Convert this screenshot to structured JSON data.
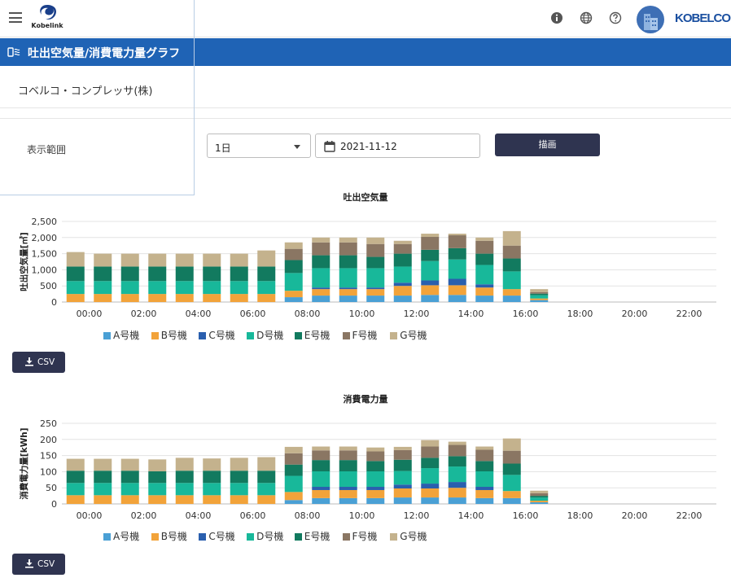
{
  "app": {
    "logo_text": "Kobelink",
    "brand": "KOBELCO"
  },
  "topbar": {
    "icons": [
      "menu-icon",
      "info-icon",
      "globe-icon",
      "help-icon",
      "avatar-building-icon"
    ]
  },
  "page": {
    "title": "吐出空気量/消費電力量グラフ",
    "title_icon": "compressor-icon",
    "company": "コベルコ・コンプレッサ(株)"
  },
  "form": {
    "range_label": "表示範囲",
    "range_value": "1日",
    "date_value": "2021-11-12",
    "draw_button": "描画"
  },
  "colors": {
    "A": "#4aa0d5",
    "B": "#f2a33a",
    "C": "#2a5fae",
    "D": "#18b89a",
    "E": "#127a5f",
    "F": "#8a7663",
    "G": "#c4b28d",
    "header": "#1f63b5",
    "button": "#2f3450"
  },
  "csv_label": "CSV",
  "chart_data": [
    {
      "type": "bar",
      "stacked": true,
      "title": "吐出空気量",
      "ylabel": "吐出空気量[㎥]",
      "ylim": [
        0,
        2500
      ],
      "yticks": [
        "0",
        "500",
        "1,000",
        "1,500",
        "2,000",
        "2,500"
      ],
      "xtick_labels": [
        "00:00",
        "02:00",
        "04:00",
        "06:00",
        "08:00",
        "10:00",
        "12:00",
        "14:00",
        "16:00",
        "18:00",
        "20:00",
        "22:00"
      ],
      "categories": [
        "00:00",
        "01:00",
        "02:00",
        "03:00",
        "04:00",
        "05:00",
        "06:00",
        "07:00",
        "08:00",
        "09:00",
        "10:00",
        "11:00",
        "12:00",
        "13:00",
        "14:00",
        "15:00",
        "16:00",
        "17:00"
      ],
      "series": [
        {
          "name": "A号機",
          "values": [
            0,
            0,
            0,
            0,
            0,
            0,
            0,
            0,
            150,
            200,
            200,
            200,
            200,
            220,
            220,
            200,
            200,
            60
          ]
        },
        {
          "name": "B号機",
          "values": [
            250,
            250,
            250,
            250,
            250,
            250,
            250,
            250,
            200,
            200,
            200,
            200,
            300,
            300,
            300,
            250,
            200,
            50
          ]
        },
        {
          "name": "C号機",
          "values": [
            0,
            0,
            0,
            0,
            0,
            0,
            0,
            0,
            0,
            50,
            50,
            50,
            100,
            150,
            200,
            100,
            0,
            0
          ]
        },
        {
          "name": "D号機",
          "values": [
            400,
            400,
            400,
            400,
            400,
            400,
            400,
            400,
            550,
            600,
            600,
            600,
            500,
            600,
            600,
            600,
            550,
            100
          ]
        },
        {
          "name": "E号機",
          "values": [
            450,
            450,
            450,
            450,
            450,
            450,
            450,
            450,
            400,
            400,
            400,
            350,
            400,
            350,
            350,
            350,
            400,
            50
          ]
        },
        {
          "name": "F号機",
          "values": [
            0,
            0,
            0,
            0,
            0,
            0,
            0,
            0,
            350,
            400,
            400,
            400,
            300,
            400,
            400,
            400,
            400,
            50
          ]
        },
        {
          "name": "G号機",
          "values": [
            450,
            400,
            400,
            400,
            400,
            400,
            400,
            500,
            200,
            150,
            150,
            200,
            100,
            100,
            50,
            100,
            450,
            90
          ]
        }
      ]
    },
    {
      "type": "bar",
      "stacked": true,
      "title": "消費電力量",
      "ylabel": "消費電力量[kWh]",
      "ylim": [
        0,
        250
      ],
      "yticks": [
        "0",
        "50",
        "100",
        "150",
        "200",
        "250"
      ],
      "xtick_labels": [
        "00:00",
        "02:00",
        "04:00",
        "06:00",
        "08:00",
        "10:00",
        "12:00",
        "14:00",
        "16:00",
        "18:00",
        "20:00",
        "22:00"
      ],
      "categories": [
        "00:00",
        "01:00",
        "02:00",
        "03:00",
        "04:00",
        "05:00",
        "06:00",
        "07:00",
        "08:00",
        "09:00",
        "10:00",
        "11:00",
        "12:00",
        "13:00",
        "14:00",
        "15:00",
        "16:00",
        "17:00"
      ],
      "series": [
        {
          "name": "A号機",
          "values": [
            0,
            0,
            0,
            0,
            0,
            0,
            0,
            0,
            12,
            18,
            18,
            18,
            20,
            20,
            20,
            18,
            18,
            5
          ]
        },
        {
          "name": "B号機",
          "values": [
            27,
            27,
            27,
            27,
            27,
            27,
            27,
            27,
            25,
            25,
            25,
            25,
            28,
            28,
            30,
            25,
            22,
            5
          ]
        },
        {
          "name": "C号機",
          "values": [
            0,
            0,
            0,
            0,
            0,
            0,
            0,
            0,
            0,
            10,
            10,
            10,
            12,
            15,
            18,
            10,
            0,
            0
          ]
        },
        {
          "name": "D号機",
          "values": [
            38,
            38,
            38,
            38,
            38,
            38,
            38,
            38,
            50,
            48,
            48,
            48,
            42,
            48,
            48,
            48,
            50,
            10
          ]
        },
        {
          "name": "E号機",
          "values": [
            38,
            38,
            38,
            36,
            38,
            38,
            38,
            38,
            35,
            35,
            35,
            32,
            35,
            32,
            32,
            32,
            35,
            5
          ]
        },
        {
          "name": "F号機",
          "values": [
            0,
            0,
            0,
            0,
            0,
            0,
            0,
            0,
            35,
            30,
            30,
            30,
            30,
            35,
            35,
            35,
            40,
            8
          ]
        },
        {
          "name": "G号機",
          "values": [
            37,
            37,
            37,
            37,
            40,
            38,
            40,
            42,
            20,
            12,
            12,
            12,
            10,
            20,
            10,
            10,
            38,
            8
          ]
        }
      ]
    }
  ]
}
